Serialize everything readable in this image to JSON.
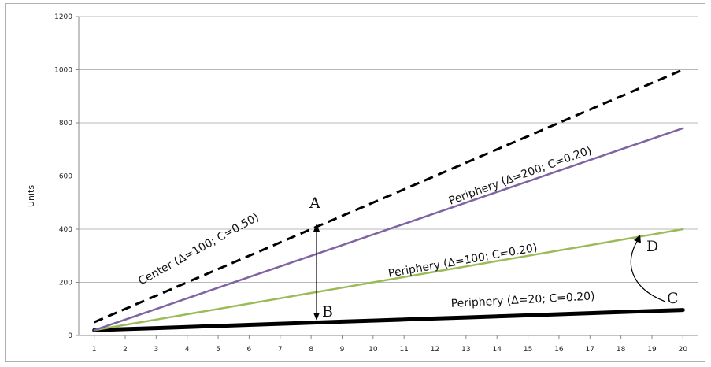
{
  "chart_data": {
    "type": "line",
    "title": "",
    "xlabel": "",
    "ylabel": "Units",
    "x": [
      1,
      2,
      3,
      4,
      5,
      6,
      7,
      8,
      9,
      10,
      11,
      12,
      13,
      14,
      15,
      16,
      17,
      18,
      19,
      20
    ],
    "xlim": [
      1,
      20
    ],
    "ylim": [
      0,
      1200
    ],
    "yticks": [
      "0",
      "200",
      "400",
      "600",
      "800",
      "1000",
      "1200"
    ],
    "xticks": [
      "1",
      "2",
      "3",
      "4",
      "5",
      "6",
      "7",
      "8",
      "9",
      "10",
      "11",
      "12",
      "13",
      "14",
      "15",
      "16",
      "17",
      "18",
      "19",
      "20"
    ],
    "grid": "horizontal",
    "legend": "none",
    "series": [
      {
        "name": "Center (Δ=100; C=0.50)",
        "style": "dashed",
        "color": "#000000",
        "values": [
          50,
          100,
          150,
          200,
          250,
          300,
          350,
          400,
          450,
          500,
          550,
          600,
          650,
          700,
          750,
          800,
          850,
          900,
          950,
          1000
        ]
      },
      {
        "name": "Periphery (Δ=200; C=0.20)",
        "style": "solid",
        "color": "#8064a2",
        "values": [
          20,
          60,
          100,
          140,
          180,
          220,
          260,
          300,
          340,
          380,
          420,
          460,
          500,
          540,
          580,
          620,
          660,
          700,
          740,
          780
        ]
      },
      {
        "name": "Periphery (Δ=100; C=0.20)",
        "style": "solid",
        "color": "#9bbb59",
        "values": [
          20,
          40,
          60,
          80,
          100,
          120,
          140,
          160,
          180,
          200,
          220,
          240,
          260,
          280,
          300,
          320,
          340,
          360,
          380,
          400
        ]
      },
      {
        "name": "Periphery (Δ=20; C=0.20)",
        "style": "solid-thick",
        "color": "#000000",
        "values": [
          20,
          24,
          28,
          32,
          36,
          40,
          44,
          48,
          52,
          56,
          60,
          64,
          68,
          72,
          76,
          80,
          84,
          88,
          92,
          96
        ]
      }
    ],
    "annotations": {
      "point_a": "A",
      "point_b": "B",
      "point_c": "C",
      "point_d": "D"
    }
  }
}
